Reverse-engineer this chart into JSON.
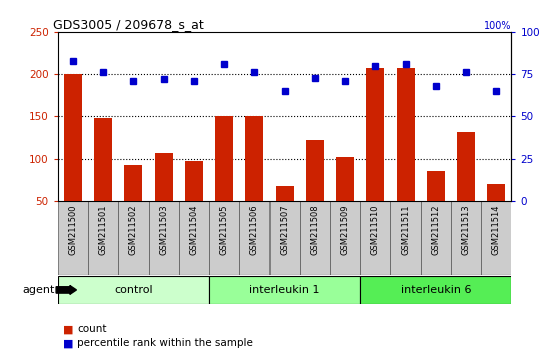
{
  "title": "GDS3005 / 209678_s_at",
  "samples": [
    "GSM211500",
    "GSM211501",
    "GSM211502",
    "GSM211503",
    "GSM211504",
    "GSM211505",
    "GSM211506",
    "GSM211507",
    "GSM211508",
    "GSM211509",
    "GSM211510",
    "GSM211511",
    "GSM211512",
    "GSM211513",
    "GSM211514"
  ],
  "counts": [
    200,
    148,
    93,
    107,
    97,
    150,
    150,
    68,
    122,
    102,
    207,
    207,
    85,
    132,
    70
  ],
  "percentiles": [
    83,
    76,
    71,
    72,
    71,
    81,
    76,
    65,
    73,
    71,
    80,
    81,
    68,
    76,
    65
  ],
  "groups": [
    {
      "label": "control",
      "start": 0,
      "end": 5,
      "color": "#ccffcc"
    },
    {
      "label": "interleukin 1",
      "start": 5,
      "end": 10,
      "color": "#99ff99"
    },
    {
      "label": "interleukin 6",
      "start": 10,
      "end": 15,
      "color": "#55ee55"
    }
  ],
  "ylim_left": [
    50,
    250
  ],
  "ylim_right": [
    0,
    100
  ],
  "yticks_left": [
    50,
    100,
    150,
    200,
    250
  ],
  "yticks_right": [
    0,
    25,
    50,
    75,
    100
  ],
  "bar_color": "#cc2200",
  "dot_color": "#0000cc",
  "bg_color": "#ffffff",
  "tick_color_left": "#cc2200",
  "tick_color_right": "#0000cc",
  "agent_label": "agent"
}
